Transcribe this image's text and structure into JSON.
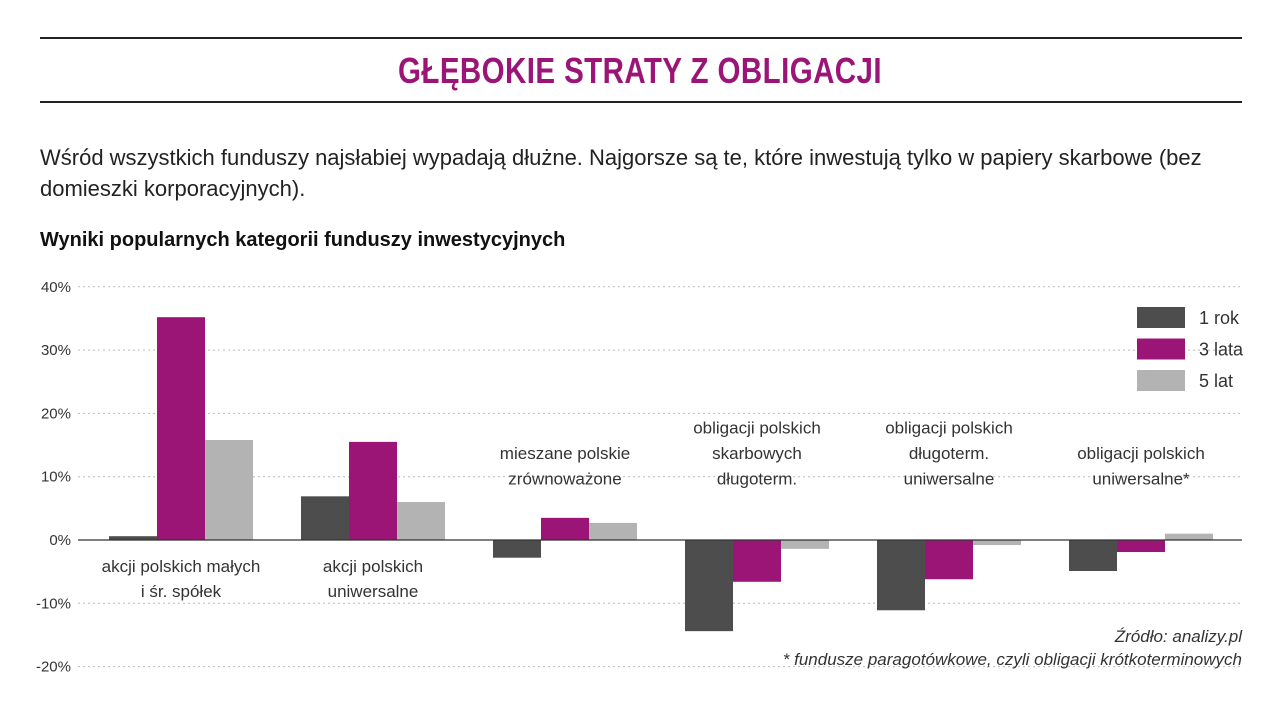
{
  "header": {
    "title": "GŁĘBOKIE STRATY Z OBLIGACJI",
    "subtitle": "Wśród wszystkich funduszy najsłabiej wypadają dłużne. Najgorsze są te, które inwestują tylko w papiery skarbowe (bez domieszki korporacyjnych)."
  },
  "chart_data": {
    "type": "bar",
    "title": "Wyniki popularnych kategorii funduszy inwestycyjnych",
    "categories": [
      "akcji polskich małych i śr. spółek",
      "akcji polskich uniwersalne",
      "mieszane polskie zrównoważone",
      "obligacji polskich skarbowych długoterm.",
      "obligacji polskich długoterm. uniwersalne",
      "obligacji polskich uniwersalne*"
    ],
    "category_lines": [
      [
        "akcji polskich małych",
        "i śr. spółek"
      ],
      [
        "akcji polskich",
        "uniwersalne"
      ],
      [
        "mieszane polskie",
        "zrównoważone"
      ],
      [
        "obligacji polskich",
        "skarbowych",
        "długoterm."
      ],
      [
        "obligacji polskich",
        "długoterm.",
        "uniwersalne"
      ],
      [
        "obligacji polskich",
        "uniwersalne*"
      ]
    ],
    "series": [
      {
        "name": "1 rok",
        "color": "#4d4d4d",
        "values": [
          0.6,
          6.9,
          -2.8,
          -14.4,
          -11.1,
          -4.9
        ]
      },
      {
        "name": "3 lata",
        "color": "#9b1577",
        "values": [
          35.2,
          15.5,
          3.5,
          -6.6,
          -6.2,
          -1.9
        ]
      },
      {
        "name": "5 lat",
        "color": "#b3b3b3",
        "values": [
          15.8,
          6.0,
          2.7,
          -1.4,
          -0.8,
          1.0
        ]
      }
    ],
    "ylim": [
      -20,
      40
    ],
    "yticks": [
      "-20%",
      "-10%",
      "0%",
      "10%",
      "20%",
      "30%",
      "40%"
    ],
    "ytick_values": [
      -20,
      -10,
      0,
      10,
      20,
      30,
      40
    ],
    "grid": true,
    "legend": "top-right",
    "unit": "%"
  },
  "footer": {
    "source": "Źródło: analizy.pl",
    "note": "* fundusze paragotówkowe, czyli obligacji krótkoterminowych"
  }
}
